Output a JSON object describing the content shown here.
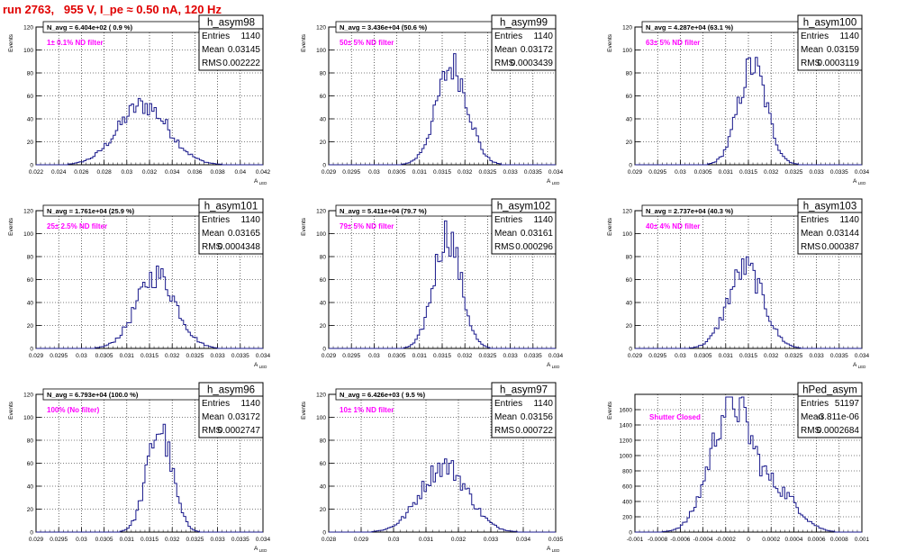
{
  "run_title": "run 2763,   955 V, I_pe ≈ 0.50 nA, 120 Hz",
  "colors": {
    "hist": "#1a1a8c",
    "title": "#e00000",
    "magenta": "#ff00ff",
    "grid": "#000000"
  },
  "chart_data": [
    {
      "type": "histogram",
      "name": "h_asym98",
      "navg": "N_avg = 6.404e+02 ( 0.9 %)",
      "filter": "1± 0.1% ND filter",
      "stats": {
        "entries_label": "Entries",
        "entries": "1140",
        "mean_label": "Mean",
        "mean": "0.03145",
        "rms_label": "RMS",
        "rms": "0.002222"
      },
      "ylabel": "Events",
      "xlabel": "A_LED",
      "xlim": [
        0.022,
        0.042
      ],
      "ylim": [
        0,
        120
      ],
      "xticks": [
        "0.022",
        "0.024",
        "0.026",
        "0.028",
        "0.03",
        "0.032",
        "0.034",
        "0.036",
        "0.038",
        "0.04",
        "0.042"
      ],
      "yticks": [
        "0",
        "20",
        "40",
        "60",
        "80",
        "100",
        "120"
      ],
      "mean_value": 0.03145,
      "rms_value": 0.002222,
      "peak": 52
    },
    {
      "type": "histogram",
      "name": "h_asym99",
      "navg": "N_avg = 3.436e+04 (50.6 %)",
      "filter": "50± 5% ND filter",
      "stats": {
        "entries_label": "Entries",
        "entries": "1140",
        "mean_label": "Mean",
        "mean": "0.03172",
        "rms_label": "RMS",
        "rms": "0.0003439"
      },
      "ylabel": "Events",
      "xlabel": "A_LED",
      "xlim": [
        0.029,
        0.034
      ],
      "ylim": [
        0,
        120
      ],
      "xticks": [
        "0.029",
        "0.0295",
        "0.03",
        "0.0305",
        "0.031",
        "0.0315",
        "0.032",
        "0.0325",
        "0.033",
        "0.0335",
        "0.034"
      ],
      "yticks": [
        "0",
        "20",
        "40",
        "60",
        "80",
        "100",
        "120"
      ],
      "mean_value": 0.03172,
      "rms_value": 0.0003439,
      "peak": 86
    },
    {
      "type": "histogram",
      "name": "h_asym100",
      "navg": "N_avg = 4.287e+04 (63.1 %)",
      "filter": "63± 5% ND filter",
      "stats": {
        "entries_label": "Entries",
        "entries": "1140",
        "mean_label": "Mean",
        "mean": "0.03159",
        "rms_label": "RMS",
        "rms": "0.0003119"
      },
      "ylabel": "Events",
      "xlabel": "A_LED",
      "xlim": [
        0.029,
        0.034
      ],
      "ylim": [
        0,
        120
      ],
      "xticks": [
        "0.029",
        "0.0295",
        "0.03",
        "0.0305",
        "0.031",
        "0.0315",
        "0.032",
        "0.0325",
        "0.033",
        "0.0335",
        "0.034"
      ],
      "yticks": [
        "0",
        "20",
        "40",
        "60",
        "80",
        "100",
        "120"
      ],
      "mean_value": 0.03159,
      "rms_value": 0.0003119,
      "peak": 86
    },
    {
      "type": "histogram",
      "name": "h_asym101",
      "navg": "N_avg = 1.761e+04 (25.9 %)",
      "filter": "25± 2.5% ND filter",
      "stats": {
        "entries_label": "Entries",
        "entries": "1140",
        "mean_label": "Mean",
        "mean": "0.03165",
        "rms_label": "RMS",
        "rms": "0.0004348"
      },
      "ylabel": "Events",
      "xlabel": "A_LED",
      "xlim": [
        0.029,
        0.034
      ],
      "ylim": [
        0,
        120
      ],
      "xticks": [
        "0.029",
        "0.0295",
        "0.03",
        "0.0305",
        "0.031",
        "0.0315",
        "0.032",
        "0.0325",
        "0.033",
        "0.0335",
        "0.034"
      ],
      "yticks": [
        "0",
        "20",
        "40",
        "60",
        "80",
        "100",
        "120"
      ],
      "mean_value": 0.03165,
      "rms_value": 0.0004348,
      "peak": 64
    },
    {
      "type": "histogram",
      "name": "h_asym102",
      "navg": "N_avg = 5.411e+04 (79.7 %)",
      "filter": "79± 5% ND filter",
      "stats": {
        "entries_label": "Entries",
        "entries": "1140",
        "mean_label": "Mean",
        "mean": "0.03161",
        "rms_label": "RMS",
        "rms": "0.000296"
      },
      "ylabel": "Events",
      "xlabel": "A_LED",
      "xlim": [
        0.029,
        0.034
      ],
      "ylim": [
        0,
        120
      ],
      "xticks": [
        "0.029",
        "0.0295",
        "0.03",
        "0.0305",
        "0.031",
        "0.0315",
        "0.032",
        "0.0325",
        "0.033",
        "0.0335",
        "0.034"
      ],
      "yticks": [
        "0",
        "20",
        "40",
        "60",
        "80",
        "100",
        "120"
      ],
      "mean_value": 0.03161,
      "rms_value": 0.000296,
      "peak": 100
    },
    {
      "type": "histogram",
      "name": "h_asym103",
      "navg": "N_avg = 2.737e+04 (40.3 %)",
      "filter": "40± 4% ND filter",
      "stats": {
        "entries_label": "Entries",
        "entries": "1140",
        "mean_label": "Mean",
        "mean": "0.03144",
        "rms_label": "RMS",
        "rms": "0.000387"
      },
      "ylabel": "Events",
      "xlabel": "A_LED",
      "xlim": [
        0.029,
        0.034
      ],
      "ylim": [
        0,
        120
      ],
      "xticks": [
        "0.029",
        "0.0295",
        "0.03",
        "0.0305",
        "0.031",
        "0.0315",
        "0.032",
        "0.0325",
        "0.033",
        "0.0335",
        "0.034"
      ],
      "yticks": [
        "0",
        "20",
        "40",
        "60",
        "80",
        "100",
        "120"
      ],
      "mean_value": 0.03144,
      "rms_value": 0.000387,
      "peak": 70
    },
    {
      "type": "histogram",
      "name": "h_asym96",
      "navg": "N_avg = 6.793e+04 (100.0 %)",
      "filter": "100% (No filter)",
      "stats": {
        "entries_label": "Entries",
        "entries": "1140",
        "mean_label": "Mean",
        "mean": "0.03172",
        "rms_label": "RMS",
        "rms": "0.0002747"
      },
      "ylabel": "Events",
      "xlabel": "A_LED",
      "xlim": [
        0.029,
        0.034
      ],
      "ylim": [
        0,
        120
      ],
      "xticks": [
        "0.029",
        "0.0295",
        "0.03",
        "0.0305",
        "0.031",
        "0.0315",
        "0.032",
        "0.0325",
        "0.033",
        "0.0335",
        "0.034"
      ],
      "yticks": [
        "0",
        "20",
        "40",
        "60",
        "80",
        "100",
        "120"
      ],
      "mean_value": 0.03172,
      "rms_value": 0.0002747,
      "peak": 90
    },
    {
      "type": "histogram",
      "name": "h_asym97",
      "navg": "N_avg = 6.426e+03 ( 9.5 %)",
      "filter": "10± 1% ND filter",
      "stats": {
        "entries_label": "Entries",
        "entries": "1140",
        "mean_label": "Mean",
        "mean": "0.03156",
        "rms_label": "RMS",
        "rms": "0.000722"
      },
      "ylabel": "Events",
      "xlabel": "A_LED",
      "xlim": [
        0.028,
        0.035
      ],
      "ylim": [
        0,
        120
      ],
      "xticks": [
        "0.028",
        "0.029",
        "0.03",
        "0.031",
        "0.032",
        "0.033",
        "0.034",
        "0.035"
      ],
      "yticks": [
        "0",
        "20",
        "40",
        "60",
        "80",
        "100",
        "120"
      ],
      "mean_value": 0.03156,
      "rms_value": 0.000722,
      "peak": 58
    },
    {
      "type": "histogram",
      "name": "hPed_asym",
      "navg": "",
      "filter": "Shutter Closed",
      "stats": {
        "entries_label": "Entries",
        "entries": "51197",
        "mean_label": "Mean",
        "mean": "-3.811e-06",
        "rms_label": "RMS",
        "rms": "0.0002684"
      },
      "ylabel": "Events",
      "xlabel": "",
      "xlim": [
        -0.001,
        0.001
      ],
      "ylim": [
        0,
        1800
      ],
      "xticks": [
        "-0.001",
        "-0.0008",
        "-0.0006",
        "-0.0004",
        "-0.0002",
        "0",
        "0.0002",
        "0.0004",
        "0.0006",
        "0.0008",
        "0.001"
      ],
      "yticks": [
        "0",
        "200",
        "400",
        "600",
        "800",
        "1000",
        "1200",
        "1400",
        "1600"
      ],
      "mean_value": -0.00015,
      "rms_value": 0.00018,
      "peak": 1700,
      "shoulder": true
    }
  ]
}
